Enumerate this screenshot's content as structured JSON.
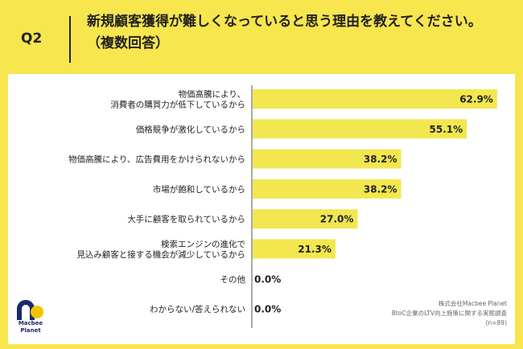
{
  "header": {
    "question_number": "Q2",
    "question_text": "新規顧客獲得が難しくなっていると思う理由を教えてください。（複数回答）"
  },
  "footer": {
    "company": "株式会社Macbee Planet",
    "survey": "BtoC企業のLTV向上施策に関する実態調査",
    "sample": "(n=89)"
  },
  "logo": {
    "text_line1": "Macbee",
    "text_line2": "Planet",
    "colors": {
      "navy": "#1a2a6c",
      "yellow": "#f5c400"
    }
  },
  "colors": {
    "background": "#f7e64d",
    "bar": "#f3e750",
    "panel": "#ffffff",
    "axis": "#555555"
  },
  "chart_data": {
    "type": "bar",
    "orientation": "horizontal",
    "categories": [
      [
        "物価高騰により、",
        "消費者の購買力が低下しているから"
      ],
      [
        "価格競争が激化しているから"
      ],
      [
        "物価高騰により、広告費用をかけられないから"
      ],
      [
        "市場が飽和しているから"
      ],
      [
        "大手に顧客を取られているから"
      ],
      [
        "検索エンジンの進化で",
        "見込み顧客と接する機会が減少しているから"
      ],
      [
        "その他"
      ],
      [
        "わからない/答えられない"
      ]
    ],
    "values": [
      62.9,
      55.1,
      38.2,
      38.2,
      27.0,
      21.3,
      0.0,
      0.0
    ],
    "value_labels": [
      "62.9%",
      "55.1%",
      "38.2%",
      "38.2%",
      "27.0%",
      "21.3%",
      "0.0%",
      "0.0%"
    ],
    "xlim": [
      0,
      65
    ],
    "grid": false
  }
}
